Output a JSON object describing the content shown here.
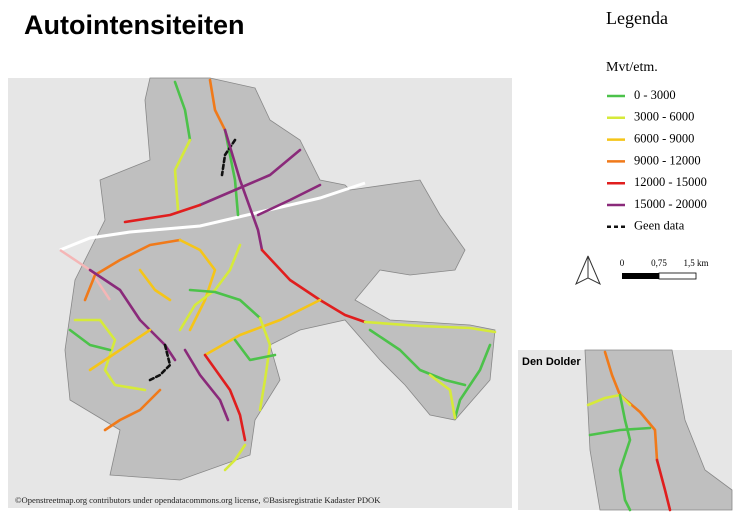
{
  "header": {
    "title": "Autointensiteiten"
  },
  "legend": {
    "title": "Legenda",
    "unit": "Mvt/etm.",
    "items": [
      {
        "label": "0 - 3000",
        "color": "#4cc24a"
      },
      {
        "label": "3000 - 6000",
        "color": "#d6ea3a"
      },
      {
        "label": "6000 - 9000",
        "color": "#f5c518"
      },
      {
        "label": "9000 - 12000",
        "color": "#f07a1a"
      },
      {
        "label": "12000 - 15000",
        "color": "#e01e1e"
      },
      {
        "label": "15000 - 20000",
        "color": "#8a2a7a"
      },
      {
        "label": "Geen data",
        "color": "#111111",
        "dashed": true
      }
    ]
  },
  "scale_bar": {
    "labels": [
      "0",
      "0,75",
      "1,5 km"
    ]
  },
  "inset": {
    "label": "Den Dolder"
  },
  "attribution": "©Openstreetmap.org contributors under opendatacommons.org license, ©Basisregistratie Kadaster PDOK"
}
